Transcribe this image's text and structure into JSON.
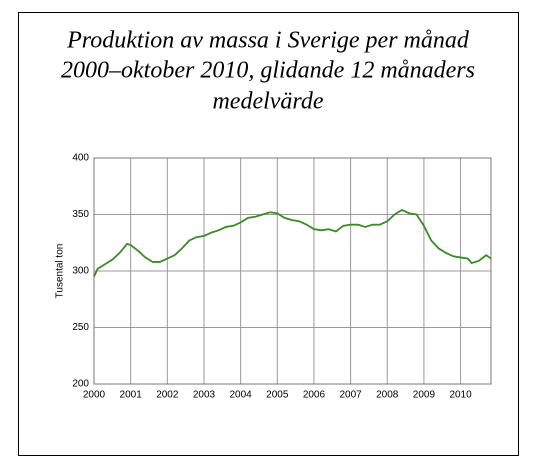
{
  "chart_data": {
    "type": "line",
    "title": [
      "Produktion av massa i Sverige per månad",
      "2000–oktober 2010, glidande 12 månaders",
      "medelvärde"
    ],
    "y_label": "Tusental ton",
    "x": [
      2000.0,
      2000.1,
      2000.3,
      2000.5,
      2000.7,
      2000.9,
      2001.0,
      2001.2,
      2001.4,
      2001.6,
      2001.8,
      2002.0,
      2002.2,
      2002.4,
      2002.6,
      2002.8,
      2003.0,
      2003.2,
      2003.4,
      2003.6,
      2003.8,
      2004.0,
      2004.2,
      2004.4,
      2004.6,
      2004.8,
      2005.0,
      2005.2,
      2005.4,
      2005.6,
      2005.8,
      2006.0,
      2006.2,
      2006.4,
      2006.6,
      2006.8,
      2007.0,
      2007.2,
      2007.4,
      2007.6,
      2007.8,
      2008.0,
      2008.2,
      2008.4,
      2008.6,
      2008.8,
      2009.0,
      2009.2,
      2009.4,
      2009.6,
      2009.8,
      2010.0,
      2010.2,
      2010.3,
      2010.5,
      2010.7,
      2010.83
    ],
    "series": [
      {
        "name": "Produktion",
        "color": "#3a8a28",
        "values": [
          295,
          302,
          306,
          310,
          316,
          324,
          323,
          318,
          312,
          308,
          308,
          311,
          314,
          320,
          327,
          330,
          331,
          334,
          336,
          339,
          340,
          343,
          347,
          348,
          350,
          352,
          351,
          347,
          345,
          344,
          341,
          337,
          336,
          337,
          335,
          340,
          341,
          341,
          339,
          341,
          341,
          344,
          350,
          354,
          351,
          350,
          340,
          327,
          320,
          316,
          313,
          312,
          311,
          307,
          309,
          314,
          311
        ]
      }
    ],
    "xlim": [
      2000,
      2010.83
    ],
    "xticks": [
      2000,
      2001,
      2002,
      2003,
      2004,
      2005,
      2006,
      2007,
      2008,
      2009,
      2010
    ],
    "ylim": [
      200,
      400
    ],
    "yticks": [
      200,
      250,
      300,
      350,
      400
    ],
    "grid": true
  }
}
